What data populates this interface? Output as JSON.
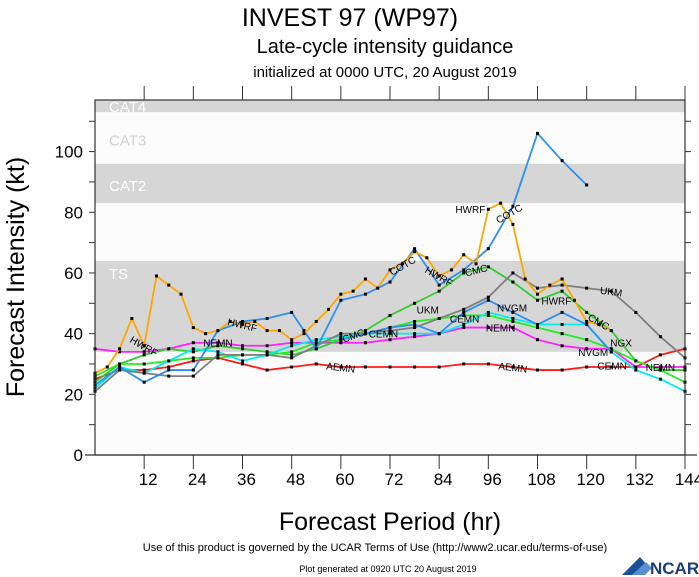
{
  "header": {
    "title": "INVEST 97 (WP97)",
    "subtitle": "Late-cycle intensity guidance",
    "init": "initialized at 0000 UTC, 20 August 2019"
  },
  "footer": {
    "terms": "Use of this product is governed by the UCAR Terms of Use (http://www2.ucar.edu/terms-of-use)",
    "generated": "Plot generated at 0920 UTC  20 August 2019",
    "logo": "NCAR"
  },
  "chart_data": {
    "type": "line",
    "title": "INVEST 97 (WP97)",
    "xlabel": "Forecast Period (hr)",
    "ylabel": "Forecast Intensity (kt)",
    "xlim": [
      0,
      144
    ],
    "ylim": [
      0,
      117
    ],
    "xticks": [
      12,
      24,
      36,
      48,
      60,
      72,
      84,
      96,
      108,
      120,
      132,
      144
    ],
    "yticks": [
      0,
      20,
      40,
      60,
      80,
      100
    ],
    "grid": false,
    "bands": [
      {
        "label": "TS",
        "from": 34,
        "to": 64,
        "fill": "#d6d6d6",
        "label_at": 60
      },
      {
        "label": "CAT1",
        "from": 64,
        "to": 83,
        "fill": "#fcfcfc",
        "label_at": 86
      },
      {
        "label": "CAT2",
        "from": 83,
        "to": 96,
        "fill": "#d6d6d6",
        "label_at": 89
      },
      {
        "label": "CAT3",
        "from": 96,
        "to": 113,
        "fill": "#fcfcfc",
        "label_at": 104
      },
      {
        "label": "CAT4",
        "from": 113,
        "to": 117,
        "fill": "#d6d6d6",
        "label_at": 115
      }
    ],
    "series": [
      {
        "name": "AEMN",
        "color": "#ff1a1a",
        "label_at": [
          60,
          102
        ],
        "x": [
          0,
          6,
          12,
          18,
          24,
          30,
          36,
          42,
          48,
          54,
          60,
          66,
          72,
          78,
          84,
          90,
          96,
          102,
          108,
          114,
          120,
          126,
          132,
          138,
          144
        ],
        "y": [
          25,
          28,
          28,
          29,
          31,
          32,
          30,
          28,
          29,
          30,
          29,
          29,
          29,
          29,
          29,
          30,
          30,
          29,
          28,
          28,
          29,
          29,
          29,
          33,
          35
        ]
      },
      {
        "name": "NEMN",
        "color": "#ff22ff",
        "label_at": [
          30,
          99,
          138
        ],
        "x": [
          0,
          6,
          12,
          18,
          24,
          30,
          36,
          42,
          48,
          54,
          60,
          66,
          72,
          78,
          84,
          90,
          96,
          102,
          108,
          114,
          120,
          126,
          132,
          138,
          144
        ],
        "y": [
          35,
          34,
          34,
          35,
          37,
          37,
          36,
          36,
          37,
          37,
          37,
          37,
          38,
          39,
          40,
          42,
          42,
          42,
          38,
          36,
          35,
          35,
          29,
          29,
          29
        ]
      },
      {
        "name": "CMC",
        "color": "#33cc33",
        "label_at": [
          63,
          93,
          123
        ],
        "x": [
          0,
          6,
          12,
          18,
          24,
          30,
          36,
          42,
          48,
          54,
          60,
          66,
          72,
          78,
          84,
          90,
          96,
          102,
          108,
          114,
          120,
          126,
          132,
          138,
          144
        ],
        "y": [
          24,
          30,
          33,
          35,
          34,
          36,
          35,
          34,
          33,
          35,
          38,
          41,
          46,
          50,
          54,
          60,
          62,
          57,
          51,
          54,
          47,
          41,
          31,
          28,
          28
        ]
      },
      {
        "name": "CEMN",
        "color": "#22ee22",
        "label_at": [
          66,
          99,
          135
        ],
        "x": [
          0,
          6,
          12,
          18,
          24,
          30,
          36,
          42,
          48,
          54,
          60,
          66,
          72,
          78,
          84,
          90,
          96,
          102,
          108,
          114,
          120,
          126,
          132,
          138,
          144
        ],
        "y": [
          26,
          30,
          30,
          31,
          32,
          32,
          33,
          33,
          34,
          37,
          38,
          40,
          42,
          44,
          45,
          46,
          46,
          44,
          42,
          40,
          38,
          35,
          31,
          28,
          24
        ]
      },
      {
        "name": "NVGM",
        "color": "#00eeee",
        "label_at": [
          93,
          126
        ],
        "x": [
          0,
          6,
          12,
          18,
          24,
          30,
          36,
          42,
          48,
          54,
          60,
          66,
          72,
          78,
          84,
          90,
          96,
          102,
          108,
          114,
          120,
          126,
          132,
          138,
          144
        ],
        "y": [
          22,
          29,
          27,
          31,
          35,
          34,
          31,
          33,
          36,
          38,
          39,
          40,
          40,
          40,
          40,
          43,
          47,
          45,
          43,
          43,
          43,
          34,
          28,
          25,
          21
        ]
      },
      {
        "name": "UKM",
        "color": "#808080",
        "label_at": [
          90,
          126
        ],
        "x": [
          0,
          6,
          12,
          18,
          24,
          30,
          36,
          42,
          48,
          54,
          60,
          66,
          72,
          78,
          84,
          90,
          96,
          102,
          108,
          114,
          120,
          126,
          132,
          138,
          144
        ],
        "y": [
          21,
          28,
          27,
          26,
          26,
          33,
          33,
          33,
          32,
          36,
          40,
          40,
          41,
          42,
          45,
          48,
          52,
          60,
          55,
          56,
          55,
          54,
          47,
          39,
          32
        ]
      },
      {
        "name": "NGX",
        "color": "#2e8ff0",
        "label_at": [
          124
        ],
        "x": [
          60,
          66,
          72,
          78,
          84,
          90,
          96,
          102,
          108,
          114,
          120,
          126
        ],
        "y": [
          38,
          40,
          42,
          43,
          40,
          47,
          51,
          47,
          43,
          47,
          43,
          34
        ]
      },
      {
        "name": "COTC",
        "color": "#2e8ff0",
        "label_at": [
          75,
          101
        ],
        "x": [
          0,
          6,
          12,
          18,
          24,
          30,
          36,
          42,
          48,
          51,
          54,
          60,
          66,
          72,
          78,
          84,
          90,
          96,
          102,
          108,
          114,
          120
        ],
        "y": [
          23,
          29,
          24,
          28,
          28,
          41,
          44,
          45,
          47,
          41,
          35,
          51,
          53,
          57,
          68,
          56,
          61,
          68,
          82,
          106,
          97,
          89
        ]
      },
      {
        "name": "HWRF",
        "color": "#ffa500",
        "label_at": [
          12,
          36,
          84,
          96,
          117
        ],
        "x": [
          0,
          3,
          6,
          9,
          12,
          15,
          18,
          21,
          24,
          27,
          30,
          33,
          36,
          39,
          42,
          45,
          48,
          51,
          54,
          57,
          60,
          63,
          66,
          69,
          72,
          75,
          78,
          81,
          84,
          87,
          90,
          93,
          96,
          99,
          102,
          105,
          108,
          111,
          114,
          117,
          120,
          123,
          126
        ],
        "y": [
          27,
          29,
          35,
          45,
          36,
          59,
          56,
          53,
          42,
          40,
          41,
          44,
          43,
          44,
          41,
          41,
          38,
          40,
          44,
          48,
          53,
          54,
          58,
          55,
          61,
          63,
          67,
          65,
          59,
          61,
          66,
          63,
          81,
          83,
          76,
          58,
          53,
          56,
          58,
          51,
          44,
          43,
          41
        ]
      }
    ]
  }
}
